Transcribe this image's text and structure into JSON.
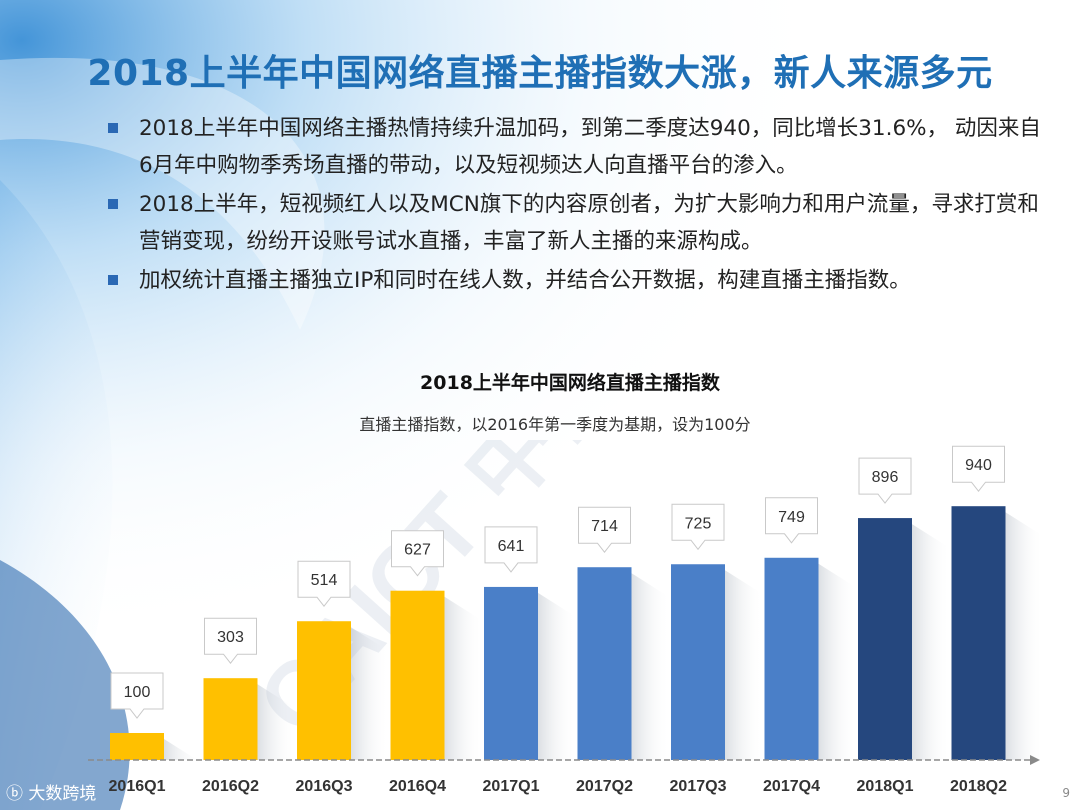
{
  "page": {
    "title": "2018上半年中国网络直播主播指数大涨，新人来源多元",
    "bullets": [
      "2018上半年中国网络主播热情持续升温加码，到第二季度达940，同比增长31.6%， 动因来自6月年中购物季秀场直播的带动，以及短视频达人向直播平台的渗入。",
      "2018上半年，短视频红人以及MCN旗下的内容原创者，为扩大影响力和用户流量，寻求打赏和营销变现，纷纷开设账号试水直播，丰富了新人主播的来源构成。",
      "加权统计直播主播独立IP和同时在线人数，并结合公开数据，构建直播主播指数。"
    ],
    "watermark_text": "CAICT 中国信通院",
    "footer_brand": "大数跨境",
    "page_number": "9"
  },
  "chart_data": {
    "type": "bar",
    "title": "2018上半年中国网络直播主播指数",
    "subtitle": "直播主播指数，以2016年第一季度为基期，设为100分",
    "categories": [
      "2016Q1",
      "2016Q2",
      "2016Q3",
      "2016Q4",
      "2017Q1",
      "2017Q2",
      "2017Q3",
      "2017Q4",
      "2018Q1",
      "2018Q2"
    ],
    "values": [
      100,
      303,
      514,
      627,
      641,
      714,
      725,
      749,
      896,
      940
    ],
    "value_labels": [
      "100",
      "303",
      "514",
      "627",
      "641",
      "714",
      "725",
      "749",
      "896",
      "940"
    ],
    "bar_colors": [
      "#ffc000",
      "#ffc000",
      "#ffc000",
      "#ffc000",
      "#4a7fc8",
      "#4a7fc8",
      "#4a7fc8",
      "#4a7fc8",
      "#25477e",
      "#25477e"
    ],
    "ylim": [
      0,
      1000
    ],
    "grid": false,
    "legend": "none"
  }
}
